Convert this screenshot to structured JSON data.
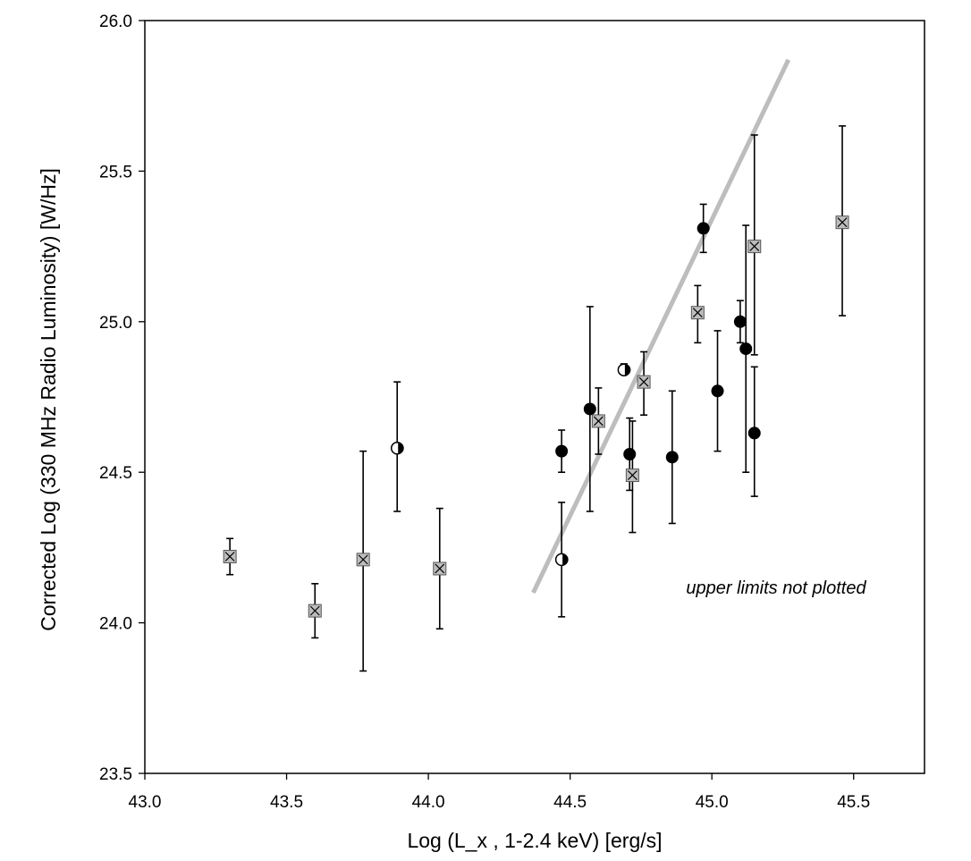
{
  "chart_data": {
    "type": "scatter",
    "xlabel": "Log (L_x , 1-2.4 keV) [erg/s]",
    "ylabel": "Corrected Log (330 MHz Radio Luminosity) [W/Hz]",
    "xlim": [
      43.0,
      45.75
    ],
    "ylim": [
      23.5,
      26.0
    ],
    "xticks": [
      "43.0",
      "43.5",
      "44.0",
      "44.5",
      "45.0",
      "45.5"
    ],
    "yticks": [
      "23.5",
      "24.0",
      "24.5",
      "25.0",
      "25.5",
      "26.0"
    ],
    "grid": false,
    "annotation": "upper limits not plotted",
    "fit_line": {
      "x": [
        44.37,
        45.27
      ],
      "y": [
        24.1,
        25.87
      ],
      "color": "#bdbdbd"
    },
    "marker_colors": {
      "filled": "#000000",
      "open": "#ffffff",
      "cross": "#bdbdbd"
    },
    "series": [
      {
        "marker": "filled-circle",
        "points": [
          {
            "x": 44.47,
            "y": 24.57,
            "lo": 24.5,
            "hi": 24.64
          },
          {
            "x": 44.57,
            "y": 24.71,
            "lo": 24.37,
            "hi": 25.05
          },
          {
            "x": 44.71,
            "y": 24.56,
            "lo": 24.44,
            "hi": 24.68
          },
          {
            "x": 44.86,
            "y": 24.55,
            "lo": 24.33,
            "hi": 24.77
          },
          {
            "x": 44.97,
            "y": 25.31,
            "lo": 25.23,
            "hi": 25.39
          },
          {
            "x": 45.02,
            "y": 24.77,
            "lo": 24.57,
            "hi": 24.97
          },
          {
            "x": 45.1,
            "y": 25.0,
            "lo": 24.93,
            "hi": 25.07
          },
          {
            "x": 45.12,
            "y": 24.91,
            "lo": 24.5,
            "hi": 25.32
          },
          {
            "x": 45.15,
            "y": 24.63,
            "lo": 24.42,
            "hi": 24.85
          }
        ]
      },
      {
        "marker": "open-circle",
        "points": [
          {
            "x": 43.89,
            "y": 24.58,
            "lo": 24.37,
            "hi": 24.8
          },
          {
            "x": 44.47,
            "y": 24.21,
            "lo": 24.02,
            "hi": 24.4
          },
          {
            "x": 44.69,
            "y": 24.84,
            "lo": 24.83,
            "hi": 24.86
          }
        ]
      },
      {
        "marker": "crossed-square",
        "points": [
          {
            "x": 43.3,
            "y": 24.22,
            "lo": 24.16,
            "hi": 24.28
          },
          {
            "x": 43.6,
            "y": 24.04,
            "lo": 23.95,
            "hi": 24.13
          },
          {
            "x": 43.77,
            "y": 24.21,
            "lo": 23.84,
            "hi": 24.57
          },
          {
            "x": 44.04,
            "y": 24.18,
            "lo": 23.98,
            "hi": 24.38
          },
          {
            "x": 44.6,
            "y": 24.67,
            "lo": 24.56,
            "hi": 24.78
          },
          {
            "x": 44.72,
            "y": 24.49,
            "lo": 24.3,
            "hi": 24.67
          },
          {
            "x": 44.76,
            "y": 24.8,
            "lo": 24.69,
            "hi": 24.9
          },
          {
            "x": 44.95,
            "y": 25.03,
            "lo": 24.93,
            "hi": 25.12
          },
          {
            "x": 45.15,
            "y": 25.25,
            "lo": 24.89,
            "hi": 25.62
          },
          {
            "x": 45.46,
            "y": 25.33,
            "lo": 25.02,
            "hi": 25.65
          }
        ]
      }
    ]
  }
}
